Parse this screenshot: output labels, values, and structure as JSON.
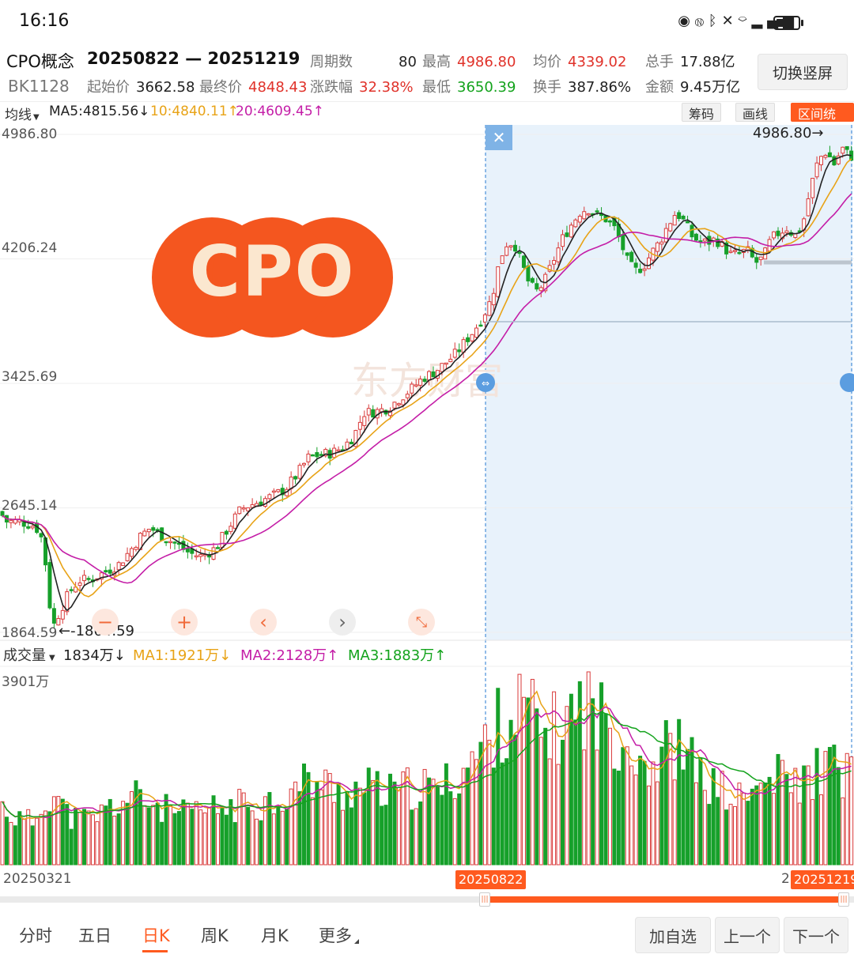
{
  "status_bar": {
    "time": "16:16",
    "icons": [
      "eye-icon",
      "nfc-icon",
      "bluetooth-icon",
      "mute-icon",
      "wifi-icon",
      "signal-icon",
      "battery-icon"
    ]
  },
  "header": {
    "name": "CPO概念",
    "code": "BK1128",
    "range": "20250822 — 20251219",
    "stats": {
      "periods_label": "周期数",
      "periods": "80",
      "high_label": "最高",
      "high": "4986.80",
      "avg_label": "均价",
      "avg": "4339.02",
      "total_hands_label": "总手",
      "total_hands": "17.88亿",
      "open_label": "起始价",
      "open": "3662.58",
      "close_label": "最终价",
      "close": "4848.43",
      "change_label": "涨跌幅",
      "change": "32.38%",
      "low_label": "最低",
      "low": "3650.39",
      "turnover_label": "换手",
      "turnover": "387.86%",
      "amount_label": "金额",
      "amount": "9.45万亿"
    },
    "switch_button": "切换竖屏"
  },
  "ma_bar": {
    "selector": "均线",
    "ma5": "MA5:4815.56↓",
    "ma10": "10:4840.11↑",
    "ma20": "20:4609.45↑",
    "buttons": [
      "筹码",
      "画线",
      "区间统计"
    ],
    "colors": {
      "ma5": "#222222",
      "ma10": "#e8a317",
      "ma20": "#c41ea7"
    }
  },
  "chart": {
    "logo_text": "CPO",
    "y_ticks": [
      "4986.80",
      "4206.24",
      "3425.69",
      "2645.14",
      "1864.59"
    ],
    "max_annotation": "4986.80→",
    "min_annotation": "←-1864.59",
    "watermark": "东方财富",
    "controls": [
      "minus-icon",
      "plus-icon",
      "chevron-left-icon",
      "chevron-right-icon",
      "collapse-icon"
    ],
    "close_icon": "✕"
  },
  "volume_bar": {
    "selector": "成交量",
    "vol": "1834万↓",
    "ma1": "MA1:1921万↓",
    "ma2": "MA2:2128万↑",
    "ma3": "MA3:1883万↑",
    "y_top": "3901万",
    "colors": {
      "ma1": "#e8a317",
      "ma2": "#c41ea7",
      "ma3": "#13a31c"
    }
  },
  "date_axis": {
    "start": "20250321",
    "sel_start": "20250822",
    "sel_end_prefix": "2",
    "sel_end": "20251219"
  },
  "tabs": [
    "分时",
    "五日",
    "日K",
    "周K",
    "月K",
    "更多"
  ],
  "active_tab": 2,
  "bottom_buttons": [
    "加自选",
    "上一个",
    "下一个"
  ],
  "chart_data": {
    "type": "candlestick",
    "title": "",
    "price_range": [
      1864.59,
      4986.8
    ],
    "volume_max": 3901,
    "volume_unit": "万",
    "selection": {
      "start": "20250822",
      "end": "20251219",
      "periods": 80
    },
    "price_path": [
      [
        0,
        2620
      ],
      [
        8,
        2560
      ],
      [
        25,
        2560
      ],
      [
        45,
        2530
      ],
      [
        55,
        2430
      ],
      [
        62,
        2060
      ],
      [
        68,
        1910
      ],
      [
        75,
        1990
      ],
      [
        88,
        2120
      ],
      [
        100,
        2190
      ],
      [
        115,
        2195
      ],
      [
        135,
        2250
      ],
      [
        150,
        2290
      ],
      [
        165,
        2380
      ],
      [
        178,
        2470
      ],
      [
        190,
        2520
      ],
      [
        205,
        2470
      ],
      [
        225,
        2410
      ],
      [
        240,
        2360
      ],
      [
        255,
        2340
      ],
      [
        272,
        2390
      ],
      [
        290,
        2530
      ],
      [
        305,
        2640
      ],
      [
        325,
        2680
      ],
      [
        345,
        2720
      ],
      [
        360,
        2760
      ],
      [
        375,
        2850
      ],
      [
        390,
        2960
      ],
      [
        405,
        2980
      ],
      [
        420,
        2990
      ],
      [
        435,
        3030
      ],
      [
        448,
        3100
      ],
      [
        460,
        3240
      ],
      [
        475,
        3250
      ],
      [
        490,
        3270
      ],
      [
        505,
        3330
      ],
      [
        520,
        3390
      ],
      [
        535,
        3460
      ],
      [
        550,
        3500
      ],
      [
        565,
        3560
      ],
      [
        578,
        3620
      ],
      [
        590,
        3700
      ],
      [
        600,
        3760
      ],
      [
        612,
        3860
      ],
      [
        622,
        3960
      ],
      [
        632,
        4200
      ],
      [
        640,
        4300
      ],
      [
        650,
        4310
      ],
      [
        660,
        4170
      ],
      [
        670,
        4040
      ],
      [
        680,
        4000
      ],
      [
        690,
        4080
      ],
      [
        700,
        4200
      ],
      [
        712,
        4340
      ],
      [
        725,
        4440
      ],
      [
        735,
        4510
      ],
      [
        745,
        4520
      ],
      [
        755,
        4480
      ],
      [
        765,
        4460
      ],
      [
        775,
        4420
      ],
      [
        785,
        4310
      ],
      [
        795,
        4170
      ],
      [
        805,
        4130
      ],
      [
        815,
        4170
      ],
      [
        825,
        4250
      ],
      [
        835,
        4320
      ],
      [
        845,
        4420
      ],
      [
        855,
        4500
      ],
      [
        865,
        4440
      ],
      [
        875,
        4350
      ],
      [
        885,
        4310
      ],
      [
        895,
        4310
      ],
      [
        905,
        4330
      ],
      [
        915,
        4280
      ],
      [
        925,
        4230
      ],
      [
        935,
        4240
      ],
      [
        945,
        4260
      ],
      [
        955,
        4180
      ],
      [
        965,
        4210
      ],
      [
        975,
        4330
      ],
      [
        985,
        4370
      ],
      [
        995,
        4400
      ],
      [
        1005,
        4350
      ],
      [
        1015,
        4420
      ],
      [
        1025,
        4650
      ],
      [
        1035,
        4830
      ],
      [
        1045,
        4880
      ],
      [
        1055,
        4800
      ],
      [
        1065,
        4900
      ],
      [
        1075,
        4850
      ]
    ],
    "volume_path": [
      [
        0,
        1200
      ],
      [
        15,
        1000
      ],
      [
        30,
        850
      ],
      [
        45,
        900
      ],
      [
        60,
        1500
      ],
      [
        70,
        1400
      ],
      [
        85,
        1000
      ],
      [
        100,
        900
      ],
      [
        120,
        950
      ],
      [
        140,
        1150
      ],
      [
        160,
        1300
      ],
      [
        175,
        1350
      ],
      [
        190,
        1250
      ],
      [
        210,
        1100
      ],
      [
        230,
        1000
      ],
      [
        250,
        1050
      ],
      [
        270,
        1100
      ],
      [
        290,
        1150
      ],
      [
        310,
        1200
      ],
      [
        330,
        1250
      ],
      [
        350,
        1300
      ],
      [
        370,
        1450
      ],
      [
        390,
        1700
      ],
      [
        410,
        1600
      ],
      [
        430,
        1450
      ],
      [
        450,
        1500
      ],
      [
        470,
        1550
      ],
      [
        490,
        1400
      ],
      [
        510,
        1500
      ],
      [
        530,
        1550
      ],
      [
        550,
        1500
      ],
      [
        570,
        1650
      ],
      [
        590,
        2000
      ],
      [
        605,
        2200
      ],
      [
        620,
        2500
      ],
      [
        635,
        2900
      ],
      [
        650,
        3000
      ],
      [
        665,
        3200
      ],
      [
        680,
        2700
      ],
      [
        695,
        2600
      ],
      [
        710,
        2800
      ],
      [
        725,
        3000
      ],
      [
        740,
        3300
      ],
      [
        755,
        2950
      ],
      [
        770,
        2800
      ],
      [
        785,
        2600
      ],
      [
        800,
        2400
      ],
      [
        815,
        2100
      ],
      [
        830,
        2000
      ],
      [
        845,
        2400
      ],
      [
        860,
        2300
      ],
      [
        875,
        2000
      ],
      [
        890,
        1700
      ],
      [
        905,
        1550
      ],
      [
        920,
        1400
      ],
      [
        935,
        1300
      ],
      [
        950,
        1400
      ],
      [
        965,
        1600
      ],
      [
        980,
        1750
      ],
      [
        995,
        1700
      ],
      [
        1010,
        1600
      ],
      [
        1025,
        1750
      ],
      [
        1040,
        2000
      ],
      [
        1055,
        1900
      ],
      [
        1075,
        1830
      ]
    ]
  }
}
